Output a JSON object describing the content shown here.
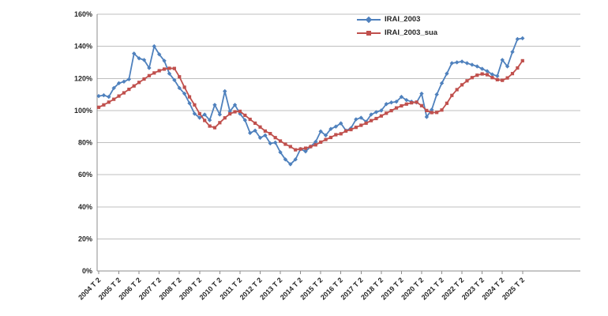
{
  "chart_data": {
    "type": "line",
    "title": "",
    "x_axis": {
      "period": "quarterly",
      "start": "2004 T 2",
      "end": "2025 T 2",
      "label_every_n_points": 4,
      "tick_labels": [
        "2004 T 2",
        "2005 T 2",
        "2006 T 2",
        "2007 T 2",
        "2008 T 2",
        "2009 T 2",
        "2010 T 2",
        "2011 T 2",
        "2012 T 2",
        "2013 T 2",
        "2014 T 2",
        "2015 T 2",
        "2016 T 2",
        "2017 T 2",
        "2018 T 2",
        "2019 T 2",
        "2020 T 2",
        "2021 T 2",
        "2022 T 2",
        "2023 T 2",
        "2024 T 2",
        "2025 T 2"
      ]
    },
    "y_axis": {
      "min": 0,
      "max": 160,
      "step": 20,
      "unit": "%",
      "tick_labels": [
        "0%",
        "20%",
        "40%",
        "60%",
        "80%",
        "100%",
        "120%",
        "140%",
        "160%"
      ]
    },
    "grid": "horizontal",
    "legend_position": "top-center",
    "colors": {
      "grid": "#BFBFBF",
      "axis": "#8C8C8C",
      "labels": "#262626",
      "background": "#FFFFFF"
    },
    "series": [
      {
        "name": "IRAI_2003",
        "color": "#4F81BD",
        "marker": "diamond",
        "values": [
          109,
          109.5,
          108.5,
          114,
          117,
          118,
          119.5,
          135.5,
          132.5,
          131.5,
          126.5,
          140,
          135,
          131,
          123,
          119,
          114,
          110.5,
          104.5,
          98,
          95.5,
          97.5,
          94,
          103.5,
          97.5,
          112,
          99.5,
          103.5,
          98,
          94,
          86,
          87.5,
          83,
          84.5,
          79.5,
          80,
          74,
          69.5,
          66.5,
          69.5,
          76,
          74.5,
          77.5,
          80.5,
          87,
          84.5,
          88.5,
          90,
          92,
          87.5,
          89,
          94.5,
          95.5,
          93,
          97.5,
          99,
          100,
          104,
          105,
          105.5,
          108.5,
          106.5,
          105.5,
          105,
          110.5,
          96,
          100.5,
          110,
          117,
          123,
          129.5,
          130,
          130.5,
          129.5,
          128.5,
          127.5,
          126,
          124.5,
          122.5,
          121.5,
          131.5,
          127.5,
          136.5,
          144.5,
          145
        ]
      },
      {
        "name": "IRAI_2003_sua",
        "color": "#C0504D",
        "marker": "square",
        "values": [
          102,
          103.5,
          105.2,
          107,
          109,
          111,
          113.2,
          115.3,
          117.5,
          119.6,
          121.7,
          123.4,
          124.8,
          125.8,
          126.3,
          126.2,
          121,
          114.5,
          108.5,
          103.5,
          98,
          93.8,
          90.3,
          89.3,
          92.4,
          95.4,
          97.9,
          99.2,
          99.5,
          97,
          94.5,
          92.1,
          89.7,
          87.2,
          85.6,
          83.1,
          81,
          79,
          77.5,
          75.5,
          76,
          76.5,
          77.5,
          78.6,
          80.3,
          81.9,
          83.2,
          84.9,
          85.5,
          87.2,
          88.1,
          89.5,
          90.8,
          92.1,
          93.7,
          95,
          96.6,
          98.3,
          99.9,
          101.6,
          102.9,
          104,
          104.8,
          105.2,
          103,
          100,
          98.7,
          98.8,
          100.3,
          104.5,
          109.4,
          113,
          116,
          118.5,
          120.5,
          122,
          122.8,
          122.3,
          120.5,
          119.2,
          118.8,
          120.3,
          123,
          126.5,
          131
        ]
      }
    ]
  }
}
